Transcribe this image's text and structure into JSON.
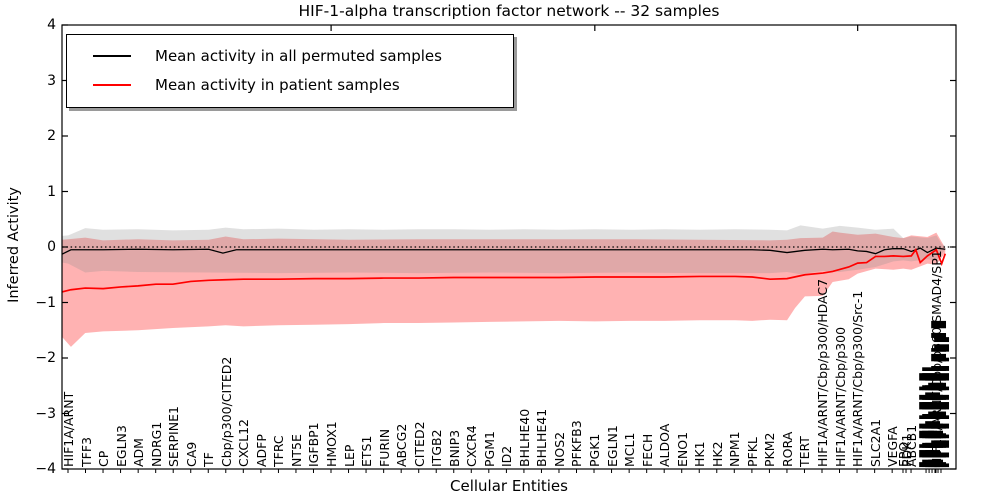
{
  "title": "HIF-1-alpha transcription factor network -- 32 samples",
  "legend": {
    "items": [
      {
        "label": "Mean activity in all permuted samples",
        "color": "#000000"
      },
      {
        "label": "Mean activity in patient samples",
        "color": "#ff0000"
      }
    ]
  },
  "axes": {
    "ylabel": "Inferred Activity",
    "xlabel": "Cellular Entities",
    "ytick_labels": [
      "4",
      "3",
      "2",
      "1",
      "0",
      "−1",
      "−2",
      "−3",
      "−4"
    ],
    "ytick_values": [
      4,
      3,
      2,
      1,
      0,
      -1,
      -2,
      -3,
      -4
    ]
  },
  "chart_data": {
    "type": "line",
    "title": "HIF-1-alpha transcription factor network -- 32 samples",
    "xlabel": "Cellular Entities",
    "ylabel": "Inferred Activity",
    "ylim": [
      -4,
      4
    ],
    "grid": false,
    "legend_position": "upper left",
    "zero_reference_line": {
      "y": 0,
      "style": "dotted",
      "color": "#000000"
    },
    "entities": [
      {
        "label": "HIF1A/ARNT",
        "x": 0.0067
      },
      {
        "label": "TFF3",
        "x": 0.0263
      },
      {
        "label": "CP",
        "x": 0.0459
      },
      {
        "label": "EGLN3",
        "x": 0.0655
      },
      {
        "label": "ADM",
        "x": 0.0852
      },
      {
        "label": "NDRG1",
        "x": 0.1048
      },
      {
        "label": "SERPINE1",
        "x": 0.1244
      },
      {
        "label": "CA9",
        "x": 0.144
      },
      {
        "label": "TF",
        "x": 0.1636
      },
      {
        "label": "Cbp/p300/CITED2",
        "x": 0.1832
      },
      {
        "label": "CXCL12",
        "x": 0.2028
      },
      {
        "label": "ADFP",
        "x": 0.2225
      },
      {
        "label": "TFRC",
        "x": 0.2421
      },
      {
        "label": "NT5E",
        "x": 0.2617
      },
      {
        "label": "IGFBP1",
        "x": 0.2813
      },
      {
        "label": "HMOX1",
        "x": 0.3009
      },
      {
        "label": "LEP",
        "x": 0.3205
      },
      {
        "label": "ETS1",
        "x": 0.3401
      },
      {
        "label": "FURIN",
        "x": 0.3598
      },
      {
        "label": "ABCG2",
        "x": 0.3794
      },
      {
        "label": "CITED2",
        "x": 0.399
      },
      {
        "label": "ITGB2",
        "x": 0.4186
      },
      {
        "label": "BNIP3",
        "x": 0.4382
      },
      {
        "label": "CXCR4",
        "x": 0.4578
      },
      {
        "label": "PGM1",
        "x": 0.4774
      },
      {
        "label": "ID2",
        "x": 0.4971
      },
      {
        "label": "BHLHE40",
        "x": 0.5167
      },
      {
        "label": "BHLHE41",
        "x": 0.5363
      },
      {
        "label": "NOS2",
        "x": 0.5559
      },
      {
        "label": "PFKFB3",
        "x": 0.5755
      },
      {
        "label": "PGK1",
        "x": 0.5951
      },
      {
        "label": "EGLN1",
        "x": 0.6147
      },
      {
        "label": "MCL1",
        "x": 0.6344
      },
      {
        "label": "FECH",
        "x": 0.654
      },
      {
        "label": "ALDOA",
        "x": 0.6736
      },
      {
        "label": "ENO1",
        "x": 0.6932
      },
      {
        "label": "HK1",
        "x": 0.7128
      },
      {
        "label": "HK2",
        "x": 0.7324
      },
      {
        "label": "NPM1",
        "x": 0.752
      },
      {
        "label": "PFKL",
        "x": 0.7717
      },
      {
        "label": "PKM2",
        "x": 0.7913
      },
      {
        "label": "RORA",
        "x": 0.8109
      },
      {
        "label": "TERT",
        "x": 0.8305
      },
      {
        "label": "HIF1A/ARNT/Cbp/p300/HDAC7",
        "x": 0.8501
      },
      {
        "label": "HIF1A/ARNT/Cbp/p300",
        "x": 0.8697
      },
      {
        "label": "HIF1A/ARNT/Cbp/p300/Src-1",
        "x": 0.8893
      },
      {
        "label": "SLC2A1",
        "x": 0.909
      },
      {
        "label": "VEGFA",
        "x": 0.9286
      },
      {
        "label": "EPO",
        "x": 0.9407
      },
      {
        "label": "PDK1",
        "x": 0.9441
      },
      {
        "label": "ABCB1",
        "x": 0.9497
      },
      {
        "label": "▌▊▍▊▌▍▊▌▍▊",
        "x": 0.9665,
        "unreadable": true
      },
      {
        "label": "▊▍▌▊▍▌▊▍▌▊▍",
        "x": 0.9699,
        "unreadable": true
      },
      {
        "label": "▍▊▌▍▊▌▍▊▌▍",
        "x": 0.9732,
        "unreadable": true
      },
      {
        "label": "▊▌▍▊▌▊▍▌▊▌",
        "x": 0.9765,
        "unreadable": true
      },
      {
        "label": "HIF1A/ARNT/Cbp/p300/SMAD4/SP1",
        "x": 0.9776
      },
      {
        "label": "▌▍▊▌▍▊▌▍▊▍▌▊▍/▌▊",
        "x": 0.9799,
        "unreadable": true
      },
      {
        "label": "▍▌▊▍▌▍▊▌▍▊▌▍▊▌",
        "x": 0.9832,
        "unreadable": true
      }
    ],
    "series": [
      {
        "name": "Mean activity in all permuted samples",
        "color": "#000000",
        "width": 1.3,
        "points": [
          [
            0.0,
            -0.13
          ],
          [
            0.01,
            -0.05
          ],
          [
            0.046,
            -0.05
          ],
          [
            0.085,
            -0.04
          ],
          [
            0.124,
            -0.05
          ],
          [
            0.164,
            -0.04
          ],
          [
            0.18,
            -0.11
          ],
          [
            0.195,
            -0.05
          ],
          [
            0.242,
            -0.05
          ],
          [
            0.321,
            -0.05
          ],
          [
            0.399,
            -0.05
          ],
          [
            0.478,
            -0.05
          ],
          [
            0.556,
            -0.05
          ],
          [
            0.635,
            -0.05
          ],
          [
            0.713,
            -0.05
          ],
          [
            0.772,
            -0.05
          ],
          [
            0.792,
            -0.06
          ],
          [
            0.811,
            -0.1
          ],
          [
            0.831,
            -0.06
          ],
          [
            0.851,
            -0.04
          ],
          [
            0.862,
            -0.05
          ],
          [
            0.88,
            -0.04
          ],
          [
            0.89,
            -0.07
          ],
          [
            0.9,
            -0.08
          ],
          [
            0.91,
            -0.12
          ],
          [
            0.92,
            -0.05
          ],
          [
            0.93,
            -0.03
          ],
          [
            0.941,
            -0.03
          ],
          [
            0.95,
            -0.08
          ],
          [
            0.96,
            -0.02
          ],
          [
            0.968,
            -0.1
          ],
          [
            0.978,
            -0.02
          ],
          [
            0.988,
            -0.04
          ]
        ]
      },
      {
        "name": "Mean activity in patient samples",
        "color": "#ff0000",
        "width": 1.7,
        "points": [
          [
            0.0,
            -0.81
          ],
          [
            0.01,
            -0.77
          ],
          [
            0.026,
            -0.74
          ],
          [
            0.046,
            -0.75
          ],
          [
            0.066,
            -0.72
          ],
          [
            0.085,
            -0.7
          ],
          [
            0.105,
            -0.67
          ],
          [
            0.124,
            -0.67
          ],
          [
            0.144,
            -0.62
          ],
          [
            0.164,
            -0.6
          ],
          [
            0.183,
            -0.59
          ],
          [
            0.203,
            -0.58
          ],
          [
            0.242,
            -0.58
          ],
          [
            0.282,
            -0.57
          ],
          [
            0.321,
            -0.57
          ],
          [
            0.36,
            -0.56
          ],
          [
            0.399,
            -0.56
          ],
          [
            0.438,
            -0.55
          ],
          [
            0.478,
            -0.55
          ],
          [
            0.517,
            -0.55
          ],
          [
            0.556,
            -0.55
          ],
          [
            0.596,
            -0.54
          ],
          [
            0.635,
            -0.54
          ],
          [
            0.674,
            -0.54
          ],
          [
            0.713,
            -0.53
          ],
          [
            0.753,
            -0.53
          ],
          [
            0.772,
            -0.54
          ],
          [
            0.792,
            -0.58
          ],
          [
            0.811,
            -0.57
          ],
          [
            0.831,
            -0.5
          ],
          [
            0.851,
            -0.47
          ],
          [
            0.862,
            -0.44
          ],
          [
            0.88,
            -0.36
          ],
          [
            0.89,
            -0.29
          ],
          [
            0.9,
            -0.28
          ],
          [
            0.91,
            -0.17
          ],
          [
            0.92,
            -0.17
          ],
          [
            0.93,
            -0.16
          ],
          [
            0.941,
            -0.17
          ],
          [
            0.95,
            -0.16
          ],
          [
            0.955,
            -0.05
          ],
          [
            0.96,
            -0.28
          ],
          [
            0.968,
            -0.16
          ],
          [
            0.978,
            -0.05
          ],
          [
            0.984,
            -0.3
          ],
          [
            0.988,
            -0.12
          ]
        ]
      }
    ],
    "bands": [
      {
        "name": "patient samples range",
        "color": "#ff0000",
        "opacity": 0.3,
        "top": [
          [
            0.0,
            0.13
          ],
          [
            0.007,
            0.14
          ],
          [
            0.026,
            0.17
          ],
          [
            0.046,
            0.12
          ],
          [
            0.085,
            0.14
          ],
          [
            0.124,
            0.12
          ],
          [
            0.164,
            0.13
          ],
          [
            0.183,
            0.19
          ],
          [
            0.203,
            0.14
          ],
          [
            0.242,
            0.15
          ],
          [
            0.321,
            0.13
          ],
          [
            0.399,
            0.14
          ],
          [
            0.478,
            0.14
          ],
          [
            0.556,
            0.14
          ],
          [
            0.635,
            0.14
          ],
          [
            0.713,
            0.13
          ],
          [
            0.792,
            0.12
          ],
          [
            0.811,
            0.13
          ],
          [
            0.826,
            0.16
          ],
          [
            0.851,
            0.17
          ],
          [
            0.862,
            0.28
          ],
          [
            0.87,
            0.26
          ],
          [
            0.89,
            0.22
          ],
          [
            0.91,
            0.24
          ],
          [
            0.93,
            0.18
          ],
          [
            0.941,
            0.16
          ],
          [
            0.95,
            0.21
          ],
          [
            0.968,
            0.18
          ],
          [
            0.978,
            0.26
          ],
          [
            0.988,
            -0.02
          ]
        ],
        "bottom": [
          [
            0.0,
            -1.62
          ],
          [
            0.01,
            -1.8
          ],
          [
            0.026,
            -1.55
          ],
          [
            0.046,
            -1.52
          ],
          [
            0.085,
            -1.5
          ],
          [
            0.124,
            -1.46
          ],
          [
            0.164,
            -1.43
          ],
          [
            0.183,
            -1.41
          ],
          [
            0.203,
            -1.43
          ],
          [
            0.242,
            -1.41
          ],
          [
            0.282,
            -1.4
          ],
          [
            0.321,
            -1.39
          ],
          [
            0.36,
            -1.37
          ],
          [
            0.399,
            -1.37
          ],
          [
            0.438,
            -1.36
          ],
          [
            0.478,
            -1.35
          ],
          [
            0.517,
            -1.34
          ],
          [
            0.556,
            -1.33
          ],
          [
            0.596,
            -1.34
          ],
          [
            0.635,
            -1.33
          ],
          [
            0.674,
            -1.33
          ],
          [
            0.713,
            -1.32
          ],
          [
            0.753,
            -1.32
          ],
          [
            0.772,
            -1.33
          ],
          [
            0.792,
            -1.31
          ],
          [
            0.811,
            -1.32
          ],
          [
            0.82,
            -1.1
          ],
          [
            0.831,
            -0.89
          ],
          [
            0.851,
            -0.88
          ],
          [
            0.862,
            -0.63
          ],
          [
            0.88,
            -0.58
          ],
          [
            0.89,
            -0.48
          ],
          [
            0.91,
            -0.39
          ],
          [
            0.93,
            -0.41
          ],
          [
            0.941,
            -0.39
          ],
          [
            0.95,
            -0.41
          ],
          [
            0.968,
            -0.3
          ],
          [
            0.978,
            -0.32
          ],
          [
            0.988,
            -0.1
          ]
        ]
      },
      {
        "name": "permuted samples range",
        "color": "#8c8c8c",
        "opacity": 0.27,
        "top": [
          [
            0.0,
            0.2
          ],
          [
            0.007,
            0.21
          ],
          [
            0.026,
            0.34
          ],
          [
            0.046,
            0.31
          ],
          [
            0.085,
            0.32
          ],
          [
            0.124,
            0.3
          ],
          [
            0.164,
            0.31
          ],
          [
            0.183,
            0.35
          ],
          [
            0.203,
            0.32
          ],
          [
            0.242,
            0.33
          ],
          [
            0.282,
            0.31
          ],
          [
            0.321,
            0.32
          ],
          [
            0.36,
            0.31
          ],
          [
            0.399,
            0.32
          ],
          [
            0.438,
            0.32
          ],
          [
            0.478,
            0.31
          ],
          [
            0.517,
            0.32
          ],
          [
            0.556,
            0.31
          ],
          [
            0.596,
            0.32
          ],
          [
            0.635,
            0.31
          ],
          [
            0.674,
            0.32
          ],
          [
            0.713,
            0.31
          ],
          [
            0.753,
            0.32
          ],
          [
            0.792,
            0.31
          ],
          [
            0.811,
            0.3
          ],
          [
            0.826,
            0.39
          ],
          [
            0.851,
            0.33
          ],
          [
            0.87,
            0.38
          ],
          [
            0.89,
            0.35
          ],
          [
            0.91,
            0.31
          ],
          [
            0.93,
            0.33
          ],
          [
            0.941,
            0.16
          ],
          [
            0.95,
            0.19
          ],
          [
            0.968,
            0.16
          ],
          [
            0.978,
            0.21
          ],
          [
            0.984,
            0.05
          ],
          [
            0.988,
            0.02
          ]
        ],
        "bottom": [
          [
            0.0,
            -0.28
          ],
          [
            0.007,
            -0.3
          ],
          [
            0.026,
            -0.46
          ],
          [
            0.046,
            -0.43
          ],
          [
            0.085,
            -0.45
          ],
          [
            0.164,
            -0.46
          ],
          [
            0.242,
            -0.47
          ],
          [
            0.321,
            -0.46
          ],
          [
            0.399,
            -0.47
          ],
          [
            0.478,
            -0.46
          ],
          [
            0.556,
            -0.47
          ],
          [
            0.635,
            -0.46
          ],
          [
            0.713,
            -0.47
          ],
          [
            0.792,
            -0.47
          ],
          [
            0.811,
            -0.45
          ],
          [
            0.826,
            -0.49
          ],
          [
            0.851,
            -0.43
          ],
          [
            0.87,
            -0.45
          ],
          [
            0.89,
            -0.41
          ],
          [
            0.91,
            -0.36
          ],
          [
            0.93,
            -0.26
          ],
          [
            0.941,
            -0.24
          ],
          [
            0.95,
            -0.26
          ],
          [
            0.968,
            -0.22
          ],
          [
            0.978,
            -0.24
          ],
          [
            0.988,
            -0.05
          ]
        ]
      }
    ]
  }
}
